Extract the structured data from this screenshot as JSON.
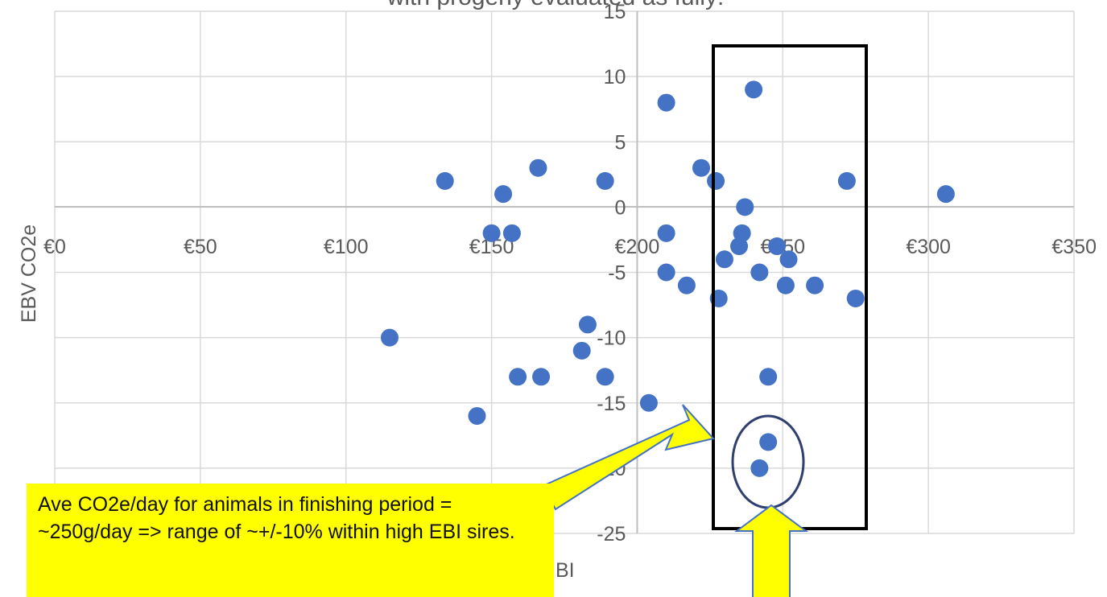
{
  "colors": {
    "point": "#4472c4",
    "grid": "#d9d9d9",
    "highlight_box": "#000000",
    "highlight_circle": "#2f3f6f",
    "arrow_fill": "#ffff00",
    "arrow_stroke": "#4472c4",
    "callout_bg": "#ffff00"
  },
  "chart_data": {
    "type": "scatter",
    "title": "with progeny evaluated as fully:",
    "xlabel": "BI",
    "ylabel": "EBV CO2e",
    "xlim": [
      0,
      350
    ],
    "ylim": [
      -25,
      15
    ],
    "x_ticks": [
      "€0",
      "€50",
      "€100",
      "€150",
      "€200",
      "€250",
      "€300",
      "€350"
    ],
    "y_ticks": [
      "-25",
      "-20",
      "-15",
      "-10",
      "-5",
      "0",
      "5",
      "10",
      "15"
    ],
    "grid": true,
    "legend": "none",
    "points": [
      {
        "x": 115,
        "y": -10
      },
      {
        "x": 134,
        "y": 2
      },
      {
        "x": 145,
        "y": -16
      },
      {
        "x": 150,
        "y": -2
      },
      {
        "x": 154,
        "y": 1
      },
      {
        "x": 157,
        "y": -2
      },
      {
        "x": 159,
        "y": -13
      },
      {
        "x": 166,
        "y": 3
      },
      {
        "x": 167,
        "y": -13
      },
      {
        "x": 181,
        "y": -11
      },
      {
        "x": 183,
        "y": -9
      },
      {
        "x": 189,
        "y": 2
      },
      {
        "x": 189,
        "y": -13
      },
      {
        "x": 204,
        "y": -15
      },
      {
        "x": 210,
        "y": 8
      },
      {
        "x": 210,
        "y": -2
      },
      {
        "x": 210,
        "y": -5
      },
      {
        "x": 217,
        "y": -6
      },
      {
        "x": 222,
        "y": 3
      },
      {
        "x": 227,
        "y": 2
      },
      {
        "x": 228,
        "y": -7
      },
      {
        "x": 230,
        "y": -4
      },
      {
        "x": 235,
        "y": -3
      },
      {
        "x": 236,
        "y": -2
      },
      {
        "x": 237,
        "y": 0
      },
      {
        "x": 240,
        "y": 9
      },
      {
        "x": 242,
        "y": -5
      },
      {
        "x": 242,
        "y": -20
      },
      {
        "x": 245,
        "y": -13
      },
      {
        "x": 245,
        "y": -18
      },
      {
        "x": 248,
        "y": -3
      },
      {
        "x": 251,
        "y": -6
      },
      {
        "x": 252,
        "y": -4
      },
      {
        "x": 261,
        "y": -6
      },
      {
        "x": 272,
        "y": 2
      },
      {
        "x": 275,
        "y": -7
      },
      {
        "x": 306,
        "y": 1
      }
    ],
    "annotations": [
      "Ave CO2e/day for animals in finishing period = ~250g/day => range of ~+/-10% within high EBI sires."
    ]
  }
}
